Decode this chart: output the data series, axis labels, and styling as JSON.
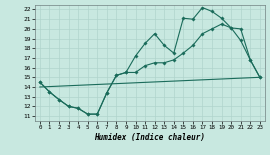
{
  "bg_color": "#c8e8e0",
  "grid_color": "#b0d4cc",
  "line_color": "#1a6b5a",
  "xlabel": "Humidex (Indice chaleur)",
  "xlim": [
    -0.5,
    23.5
  ],
  "ylim": [
    10.5,
    22.5
  ],
  "xticks": [
    0,
    1,
    2,
    3,
    4,
    5,
    6,
    7,
    8,
    9,
    10,
    11,
    12,
    13,
    14,
    15,
    16,
    17,
    18,
    19,
    20,
    21,
    22,
    23
  ],
  "yticks": [
    11,
    12,
    13,
    14,
    15,
    16,
    17,
    18,
    19,
    20,
    21,
    22
  ],
  "line1_x": [
    0,
    1,
    2,
    3,
    4,
    5,
    6,
    7,
    8,
    9,
    10,
    11,
    12,
    13,
    14,
    15,
    16,
    17,
    18,
    19,
    20,
    21,
    22,
    23
  ],
  "line1_y": [
    14.5,
    13.5,
    12.7,
    12.0,
    11.8,
    11.2,
    11.2,
    13.4,
    15.2,
    15.5,
    17.2,
    18.5,
    19.5,
    18.3,
    17.5,
    21.1,
    21.0,
    22.2,
    21.8,
    21.1,
    20.1,
    18.8,
    16.8,
    15.0
  ],
  "line2_x": [
    0,
    1,
    2,
    3,
    4,
    5,
    6,
    7,
    8,
    9,
    10,
    11,
    12,
    13,
    14,
    15,
    16,
    17,
    18,
    19,
    20,
    21,
    22,
    23
  ],
  "line2_y": [
    14.5,
    13.5,
    12.7,
    12.0,
    11.8,
    11.2,
    11.2,
    13.4,
    15.2,
    15.5,
    15.5,
    16.2,
    16.5,
    16.5,
    16.8,
    17.5,
    18.3,
    19.5,
    20.0,
    20.5,
    20.1,
    20.0,
    16.8,
    15.0
  ],
  "line3_x": [
    0,
    23
  ],
  "line3_y": [
    14.0,
    15.0
  ]
}
